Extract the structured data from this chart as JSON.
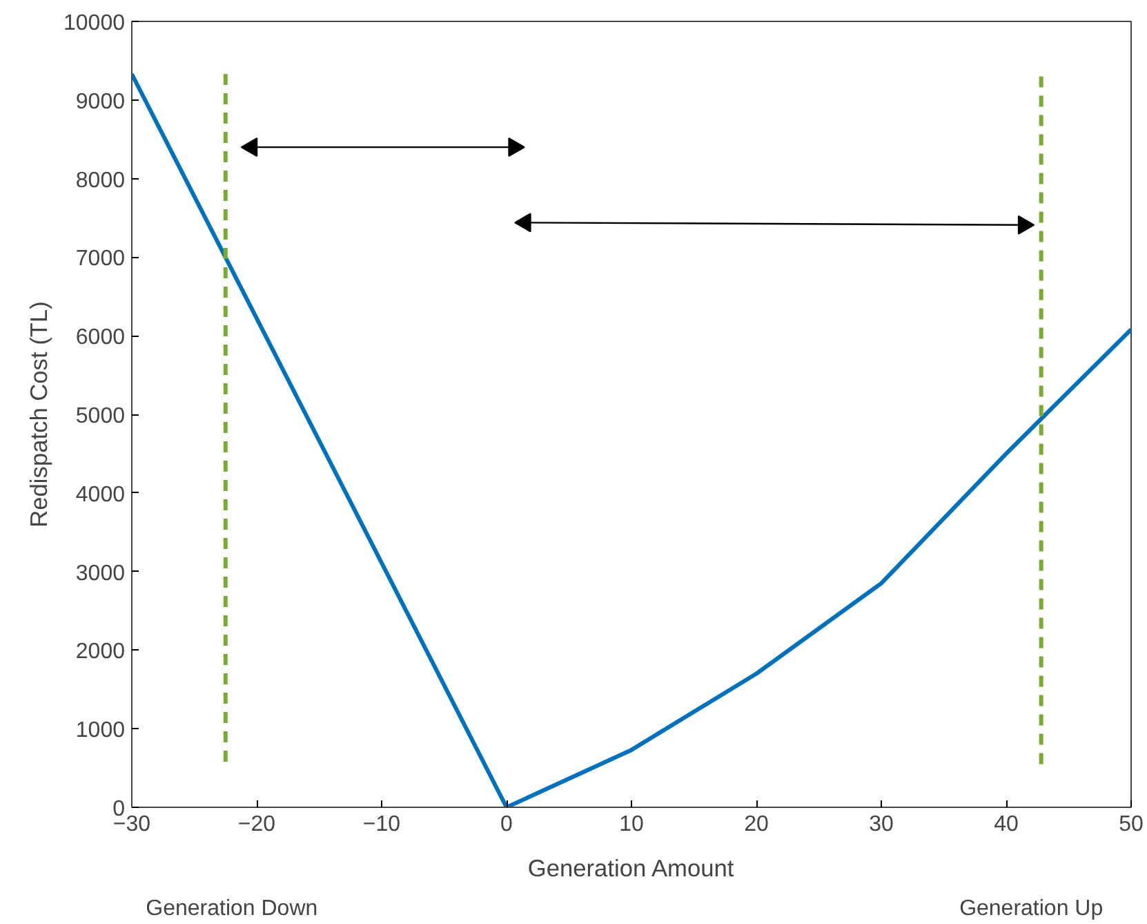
{
  "chart_data": {
    "type": "line",
    "xlabel": "Generation Amount",
    "ylabel": "Redispatch Cost (TL)",
    "xlim": [
      -30,
      50
    ],
    "xticks": [
      -30,
      -20,
      -10,
      0,
      10,
      20,
      30,
      40,
      50
    ],
    "ylim": [
      0,
      10000
    ],
    "yticks": [
      0,
      1000,
      2000,
      3000,
      4000,
      5000,
      6000,
      7000,
      8000,
      9000,
      10000
    ],
    "grid": false,
    "marker": "none",
    "series": [
      {
        "color": "#0072bd",
        "x": [
          -30,
          0,
          10,
          20,
          30,
          40,
          50
        ],
        "values": [
          9330,
          0,
          730,
          1700,
          2850,
          4500,
          6080
        ],
        "line_style": "solid"
      },
      {
        "type": "line",
        "color": "#77ac30",
        "x": [
          -22.5,
          -22.5
        ],
        "values": [
          580,
          9330
        ],
        "line_style": "dashed"
      },
      {
        "type": "line",
        "color": "#77ac30",
        "x": [
          42.8,
          42.8
        ],
        "values": [
          550,
          9300
        ],
        "line_style": "dashed"
      },
      {
        "type": "line",
        "marker": "triangle",
        "line_style": "solid",
        "color": "#000000",
        "x": [
          -20.4,
          0.6
        ],
        "values": [
          8400,
          8400
        ]
      },
      {
        "type": "line",
        "marker": "triangle",
        "line_style": "solid",
        "color": "#000000",
        "x": [
          1.5,
          41.4
        ],
        "values": [
          7440,
          7410
        ]
      }
    ],
    "annotations": [
      "Generation Down",
      "Generation Up"
    ]
  }
}
